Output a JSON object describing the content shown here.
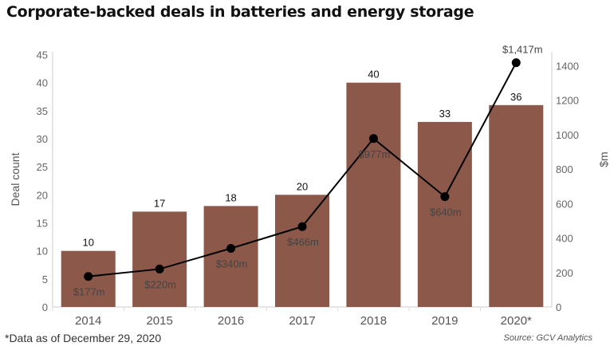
{
  "chart_data": {
    "type": "bar+line",
    "title": "Corporate-backed deals in batteries and energy storage",
    "categories": [
      "2014",
      "2015",
      "2016",
      "2017",
      "2018",
      "2019",
      "2020*"
    ],
    "series": [
      {
        "type": "bar",
        "axis": "left",
        "values": [
          10,
          17,
          18,
          20,
          40,
          33,
          36
        ],
        "labels": [
          "10",
          "17",
          "18",
          "20",
          "40",
          "33",
          "36"
        ]
      },
      {
        "type": "line",
        "axis": "right",
        "values": [
          177,
          220,
          340,
          466,
          977,
          640,
          1417
        ],
        "labels": [
          "$177m",
          "$220m",
          "$340m",
          "$466m",
          "$977m",
          "$640m",
          "$1,417m"
        ]
      }
    ],
    "ylabel_left": "Deal count",
    "ylabel_right": "$m",
    "ylim_left": [
      0,
      45.5
    ],
    "ylim_right": [
      0,
      1480
    ],
    "yticks_left": [
      0,
      5,
      10,
      15,
      20,
      25,
      30,
      35,
      40,
      45
    ],
    "yticks_right": [
      0,
      200,
      400,
      600,
      800,
      1000,
      1200,
      1400
    ],
    "grid": false,
    "colors": {
      "bar": "#8B5849",
      "line": "#000000"
    }
  },
  "footnote": "*Data as of December 29, 2020",
  "source": "Source: GCV Analytics"
}
